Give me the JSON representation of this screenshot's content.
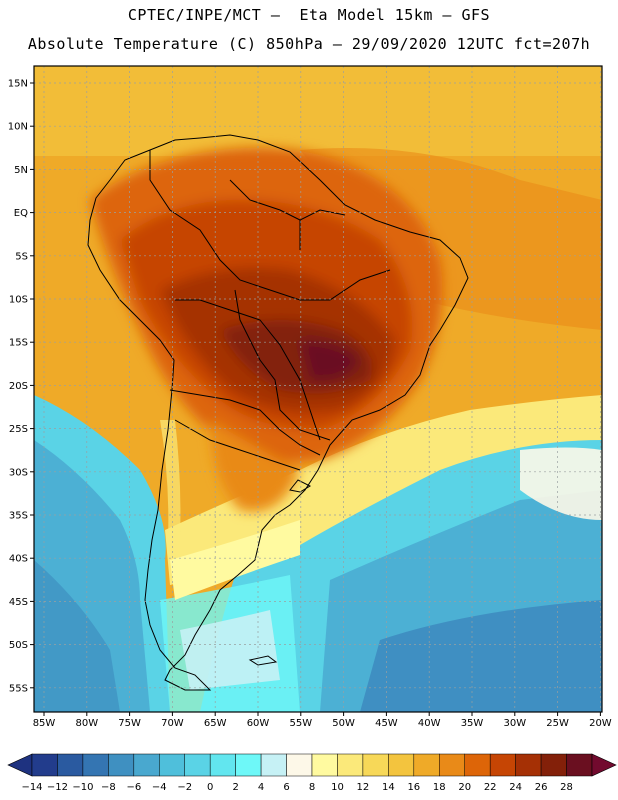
{
  "header": {
    "line1": "CPTEC/INPE/MCT –  Eta Model 15km – GFS",
    "line2": "Absolute Temperature (C) 850hPa – 29/09/2020 12UTC fct=207h"
  },
  "map": {
    "lat_labels": [
      "15N",
      "10N",
      "5N",
      "EQ",
      "5S",
      "10S",
      "15S",
      "20S",
      "25S",
      "30S",
      "35S",
      "40S",
      "45S",
      "50S",
      "55S"
    ],
    "lon_labels": [
      "85W",
      "80W",
      "75W",
      "70W",
      "65W",
      "60W",
      "55W",
      "50W",
      "45W",
      "40W",
      "35W",
      "30W",
      "25W",
      "20W"
    ]
  },
  "colorbar": {
    "labels": [
      "-14",
      "-12",
      "-10",
      "-8",
      "-6",
      "-4",
      "-2",
      "0",
      "2",
      "4",
      "6",
      "8",
      "10",
      "12",
      "14",
      "16",
      "18",
      "20",
      "22",
      "24",
      "26",
      "28"
    ],
    "colors": [
      "#223c8c",
      "#2a5aa0",
      "#3475b2",
      "#3f90c1",
      "#49a8cf",
      "#4fbfdb",
      "#5ad3e6",
      "#62e6ef",
      "#6ef8f8",
      "#c6f1f5",
      "#fdf8e8",
      "#fffaa0",
      "#fbe97a",
      "#f7d858",
      "#f3c43e",
      "#efaa28",
      "#e98a18",
      "#dd6508",
      "#c64504",
      "#a53005",
      "#832009",
      "#6a0f20"
    ],
    "under_color": "#1e3280",
    "over_color": "#720a2e"
  }
}
